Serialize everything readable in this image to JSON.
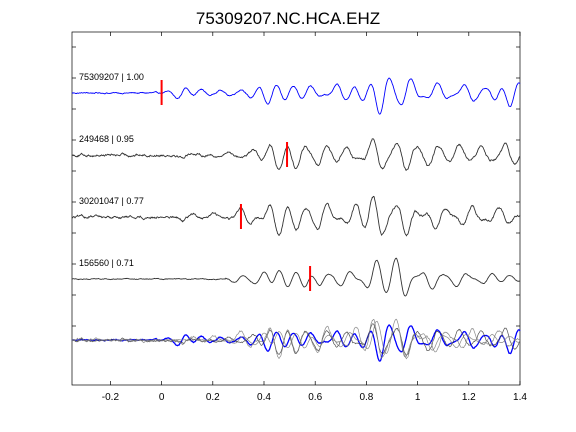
{
  "chart_data": {
    "type": "line",
    "title": "75309207.NC.HCA.EHZ",
    "xlabel": "",
    "ylabel": "",
    "xlim": [
      -0.35,
      1.4
    ],
    "xticks": [
      -0.2,
      0,
      0.2,
      0.4,
      0.6,
      0.8,
      1,
      1.2,
      1.4
    ],
    "xtick_labels": [
      "-0.2",
      "0",
      "0.2",
      "0.4",
      "0.6",
      "0.8",
      "1",
      "1.2",
      "1.4"
    ],
    "grid": false,
    "legend": "none",
    "colors": {
      "reference": "#0000ff",
      "match": "#333333",
      "overlay_match": "#777777",
      "pick": "#ff0000"
    },
    "traces": [
      {
        "name": "75309207 | 1.00",
        "id": "75309207",
        "cc": 1.0,
        "pick_time": 0.0,
        "color": "#0000ff",
        "onset": -0.01,
        "pre_noise": 0.12,
        "waves": [
          [
            0.08,
            0.8
          ],
          [
            0.15,
            0.45
          ],
          [
            0.24,
            0.35
          ],
          [
            0.34,
            0.6
          ],
          [
            0.42,
            1.3
          ],
          [
            0.5,
            1.0
          ],
          [
            0.58,
            0.9
          ],
          [
            0.7,
            1.1
          ],
          [
            0.78,
            0.95
          ],
          [
            0.86,
            2.5
          ],
          [
            0.96,
            1.8
          ],
          [
            1.08,
            1.2
          ],
          [
            1.2,
            1.1
          ],
          [
            1.3,
            0.9
          ],
          [
            1.37,
            1.8
          ]
        ]
      },
      {
        "name": "249468 | 0.95",
        "id": "249468",
        "cc": 0.95,
        "pick_time": 0.49,
        "color": "#333333",
        "onset": 0.0,
        "pre_noise": 0.25,
        "waves": [
          [
            0.1,
            0.3
          ],
          [
            0.26,
            0.35
          ],
          [
            0.37,
            0.6
          ],
          [
            0.45,
            1.8
          ],
          [
            0.53,
            1.6
          ],
          [
            0.63,
            1.4
          ],
          [
            0.72,
            1.0
          ],
          [
            0.84,
            2.2
          ],
          [
            0.95,
            1.9
          ],
          [
            1.05,
            1.3
          ],
          [
            1.15,
            1.2
          ],
          [
            1.25,
            1.0
          ],
          [
            1.36,
            1.3
          ]
        ]
      },
      {
        "name": "30201047 | 0.77",
        "id": "30201047",
        "cc": 0.77,
        "pick_time": 0.31,
        "color": "#333333",
        "onset": 0.0,
        "pre_noise": 0.25,
        "waves": [
          [
            0.1,
            0.4
          ],
          [
            0.2,
            0.4
          ],
          [
            0.32,
            1.0
          ],
          [
            0.45,
            2.2
          ],
          [
            0.53,
            1.6
          ],
          [
            0.63,
            1.8
          ],
          [
            0.76,
            1.6
          ],
          [
            0.84,
            2.6
          ],
          [
            0.95,
            2.0
          ],
          [
            1.08,
            1.5
          ],
          [
            1.2,
            1.4
          ],
          [
            1.32,
            1.0
          ]
        ]
      },
      {
        "name": "156560 | 0.71",
        "id": "156560",
        "cc": 0.71,
        "pick_time": 0.58,
        "color": "#333333",
        "onset": 0.25,
        "pre_noise": 0.08,
        "waves": [
          [
            0.3,
            0.5
          ],
          [
            0.4,
            0.9
          ],
          [
            0.47,
            1.2
          ],
          [
            0.55,
            1.0
          ],
          [
            0.62,
            0.8
          ],
          [
            0.72,
            1.0
          ],
          [
            0.84,
            2.2
          ],
          [
            0.93,
            2.6
          ],
          [
            1.05,
            1.2
          ],
          [
            1.16,
            0.9
          ],
          [
            1.28,
            0.7
          ],
          [
            1.36,
            0.5
          ]
        ]
      }
    ]
  }
}
